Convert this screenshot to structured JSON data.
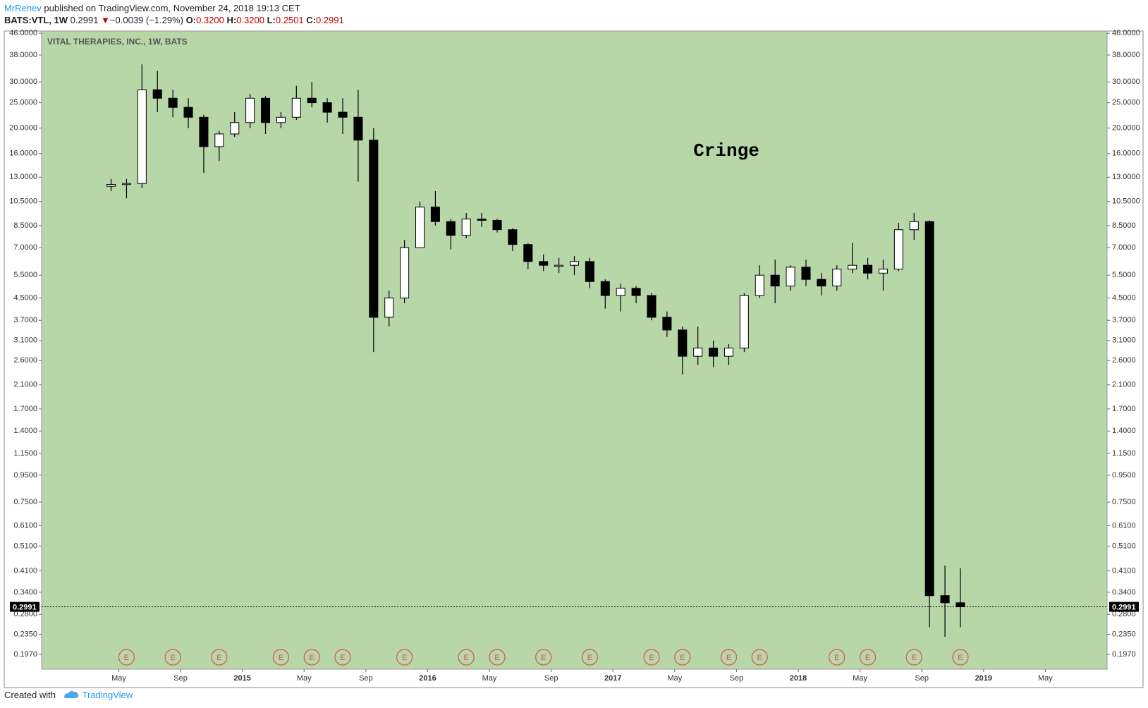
{
  "header": {
    "author": "MrRenev",
    "published": "published on TradingView.com, November 24, 2018 19:13 CET",
    "symbol": "BATS:VTL, 1W",
    "price": "0.2991",
    "arrow": "▼",
    "change": "−0.0039 (−1.29%)",
    "o_label": "O:",
    "o": "0.3200",
    "h_label": "H:",
    "h": "0.3200",
    "l_label": "L:",
    "l": "0.2501",
    "c_label": "C:",
    "c": "0.2991"
  },
  "footer": {
    "created": "Created with",
    "brand": "TradingView"
  },
  "chart_data": {
    "type": "candlestick",
    "title": "VITAL THERAPIES, INC., 1W, BATS",
    "annotation": "Cringe",
    "log_scale": true,
    "background": "#b7d7a8",
    "up_color": "#ffffff",
    "down_color": "#000000",
    "xlim": [
      "2013-12",
      "2019-09"
    ],
    "xticks": [
      {
        "value": "2014-05",
        "label": "May"
      },
      {
        "value": "2014-09",
        "label": "Sep"
      },
      {
        "value": "2015-01",
        "label": "2015"
      },
      {
        "value": "2015-05",
        "label": "May"
      },
      {
        "value": "2015-09",
        "label": "Sep"
      },
      {
        "value": "2016-01",
        "label": "2016"
      },
      {
        "value": "2016-05",
        "label": "May"
      },
      {
        "value": "2016-09",
        "label": "Sep"
      },
      {
        "value": "2017-01",
        "label": "2017"
      },
      {
        "value": "2017-05",
        "label": "May"
      },
      {
        "value": "2017-09",
        "label": "Sep"
      },
      {
        "value": "2018-01",
        "label": "2018"
      },
      {
        "value": "2018-05",
        "label": "May"
      },
      {
        "value": "2018-09",
        "label": "Sep"
      },
      {
        "value": "2019-01",
        "label": "2019"
      },
      {
        "value": "2019-05",
        "label": "May"
      }
    ],
    "ylim": [
      0.173,
      46.9
    ],
    "yticks": [
      {
        "value": 46,
        "label": "46.0000"
      },
      {
        "value": 38,
        "label": "38.0000"
      },
      {
        "value": 30,
        "label": "30.0000"
      },
      {
        "value": 25,
        "label": "25.0000"
      },
      {
        "value": 20,
        "label": "20.0000"
      },
      {
        "value": 16,
        "label": "16.0000"
      },
      {
        "value": 13,
        "label": "13.0000"
      },
      {
        "value": 10.5,
        "label": "10.5000"
      },
      {
        "value": 8.5,
        "label": "8.5000"
      },
      {
        "value": 7,
        "label": "7.0000"
      },
      {
        "value": 5.5,
        "label": "5.5000"
      },
      {
        "value": 4.5,
        "label": "4.5000"
      },
      {
        "value": 3.7,
        "label": "3.7000"
      },
      {
        "value": 3.1,
        "label": "3.1000"
      },
      {
        "value": 2.6,
        "label": "2.6000"
      },
      {
        "value": 2.1,
        "label": "2.1000"
      },
      {
        "value": 1.7,
        "label": "1.7000"
      },
      {
        "value": 1.4,
        "label": "1.4000"
      },
      {
        "value": 1.15,
        "label": "1.1500"
      },
      {
        "value": 0.95,
        "label": "0.9500"
      },
      {
        "value": 0.75,
        "label": "0.7500"
      },
      {
        "value": 0.61,
        "label": "0.6100"
      },
      {
        "value": 0.51,
        "label": "0.5100"
      },
      {
        "value": 0.41,
        "label": "0.4100"
      },
      {
        "value": 0.34,
        "label": "0.3400"
      },
      {
        "value": 0.28,
        "label": "0.2800"
      },
      {
        "value": 0.235,
        "label": "0.2350"
      },
      {
        "value": 0.197,
        "label": "0.1970"
      }
    ],
    "last_price": 0.2991,
    "x": [
      "2014-04",
      "2014-05",
      "2014-06",
      "2014-07",
      "2014-08",
      "2014-09",
      "2014-10",
      "2014-11",
      "2014-12",
      "2015-01",
      "2015-02",
      "2015-03",
      "2015-04",
      "2015-05",
      "2015-06",
      "2015-07",
      "2015-08",
      "2015-09",
      "2015-10",
      "2015-11",
      "2015-12",
      "2016-01",
      "2016-02",
      "2016-03",
      "2016-04",
      "2016-05",
      "2016-06",
      "2016-07",
      "2016-08",
      "2016-09",
      "2016-10",
      "2016-11",
      "2016-12",
      "2017-01",
      "2017-02",
      "2017-03",
      "2017-04",
      "2017-05",
      "2017-06",
      "2017-07",
      "2017-08",
      "2017-09",
      "2017-10",
      "2017-11",
      "2017-12",
      "2018-01",
      "2018-02",
      "2018-03",
      "2018-04",
      "2018-05",
      "2018-06",
      "2018-07",
      "2018-08",
      "2018-09",
      "2018-10",
      "2018-11"
    ],
    "open": [
      12,
      12.2,
      12.3,
      28,
      26,
      24,
      22,
      17,
      19,
      21,
      26,
      21,
      22,
      26,
      25,
      23,
      22,
      18,
      3.8,
      4.5,
      7,
      10,
      8.8,
      7.8,
      9,
      8.9,
      8.2,
      7.2,
      6.2,
      6,
      6,
      6.2,
      5.2,
      4.6,
      4.9,
      4.6,
      3.8,
      3.4,
      2.7,
      2.9,
      2.7,
      2.9,
      4.6,
      5.5,
      5,
      5.9,
      5.3,
      5,
      5.8,
      6,
      5.6,
      5.8,
      8.2,
      8.8,
      0.33,
      0.31
    ],
    "high": [
      12.8,
      12.8,
      35,
      33,
      28,
      26,
      22.5,
      19.5,
      23,
      27,
      26.5,
      23,
      29,
      30,
      26,
      26,
      28,
      20,
      4.8,
      7.5,
      10.5,
      11.5,
      9,
      9.5,
      9.5,
      9,
      8.3,
      7.3,
      6.6,
      6.4,
      6.5,
      6.4,
      5.3,
      5.1,
      5,
      4.7,
      4,
      3.5,
      3.5,
      3.1,
      3,
      4.7,
      6,
      6.3,
      6,
      6.3,
      5.6,
      6,
      7.3,
      6.4,
      6.3,
      8.7,
      9.5,
      8.9,
      0.43,
      0.42
    ],
    "low": [
      11.5,
      10.8,
      11.8,
      23,
      22,
      20,
      13.5,
      15,
      18.5,
      20,
      19,
      20,
      21.5,
      24,
      21,
      19,
      12.5,
      2.8,
      3.5,
      4.3,
      7,
      8.5,
      6.9,
      7.6,
      8.4,
      8,
      6.8,
      5.8,
      5.7,
      5.6,
      5.5,
      4.9,
      4.1,
      4,
      4.3,
      3.7,
      3.2,
      2.3,
      2.5,
      2.45,
      2.5,
      2.8,
      4.5,
      4.3,
      4.8,
      5,
      4.6,
      4.8,
      5.6,
      5.3,
      4.8,
      5.7,
      7.5,
      0.25,
      0.23,
      0.25
    ],
    "close": [
      12.2,
      12.3,
      28,
      26,
      24,
      22,
      17,
      19,
      21,
      26,
      21,
      22,
      26,
      25,
      23,
      22,
      18,
      3.8,
      4.5,
      7,
      10,
      8.8,
      7.8,
      9,
      8.9,
      8.2,
      7.2,
      6.2,
      6,
      6,
      6.2,
      5.2,
      4.6,
      4.9,
      4.6,
      3.8,
      3.4,
      2.7,
      2.9,
      2.7,
      2.9,
      4.6,
      5.5,
      5,
      5.9,
      5.3,
      5,
      5.8,
      6,
      5.6,
      5.8,
      8.2,
      8.8,
      0.33,
      0.31,
      0.2991
    ],
    "earnings": {
      "label": "E",
      "dates": [
        "2014-05",
        "2014-08",
        "2014-11",
        "2015-03",
        "2015-05",
        "2015-07",
        "2015-11",
        "2016-03",
        "2016-05",
        "2016-08",
        "2016-11",
        "2017-03",
        "2017-05",
        "2017-08",
        "2017-10",
        "2018-03",
        "2018-05",
        "2018-08",
        "2018-11"
      ]
    }
  }
}
